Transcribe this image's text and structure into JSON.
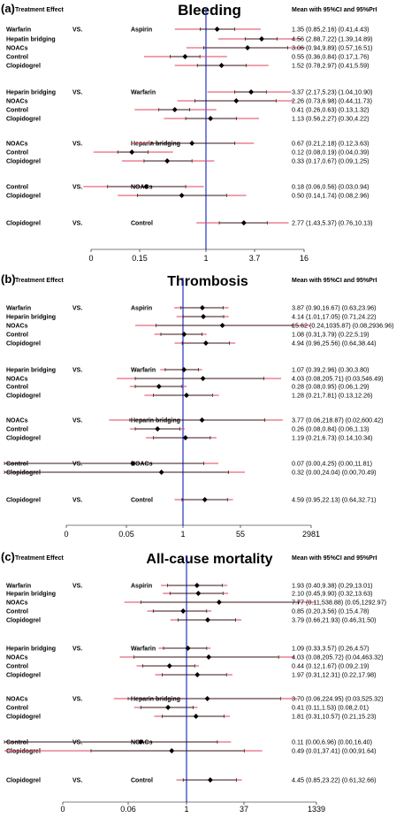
{
  "colors": {
    "ci": "#000000",
    "pri": "#e0405a",
    "ref": "#2233cc",
    "marker": "#000000"
  },
  "chart_data": [
    {
      "type": "forest",
      "panel_tag": "(a)",
      "title": "Bleeding",
      "left_header": "Treatment Effect",
      "right_header": "Mean with 95%CI and 95%PrI",
      "vs_label": "VS.",
      "x_scale": "log",
      "x_ticks": [
        "0",
        "0.15",
        "1",
        "3.7",
        "16"
      ],
      "reference": 1,
      "groups": [
        {
          "comparator": "Aspirin",
          "rows": [
            {
              "treatment": "Warfarin",
              "mean": 1.35,
              "ci": [
                0.85,
                2.16
              ],
              "pri": [
                0.41,
                4.43
              ],
              "text": "1.35 (0.85,2.16)  (0.41,4.43)"
            },
            {
              "treatment": "Hepatin bridging",
              "mean": 4.56,
              "ci": [
                2.88,
                7.22
              ],
              "pri": [
                1.39,
                14.89
              ],
              "text": "4.56 (2.88,7.22)  (1.39,14.89)"
            },
            {
              "treatment": "NOACs",
              "mean": 3.06,
              "ci": [
                0.94,
                9.89
              ],
              "pri": [
                0.57,
                16.51
              ],
              "text": "3.06 (0.94,9.89)  (0.57,16.51)"
            },
            {
              "treatment": "Control",
              "mean": 0.55,
              "ci": [
                0.36,
                0.84
              ],
              "pri": [
                0.17,
                1.76
              ],
              "text": "0.55 (0.36,0.84)  (0.17,1.76)"
            },
            {
              "treatment": "Clopidogrel",
              "mean": 1.52,
              "ci": [
                0.78,
                2.97
              ],
              "pri": [
                0.41,
                5.59
              ],
              "text": "1.52 (0.78,2.97)  (0.41,5.59)"
            }
          ]
        },
        {
          "comparator": "Warfarin",
          "rows": [
            {
              "treatment": "Heparin bridging",
              "mean": 3.37,
              "ci": [
                2.17,
                5.23
              ],
              "pri": [
                1.04,
                10.9
              ],
              "text": "3.37 (2.17,5.23)  (1.04,10.90)"
            },
            {
              "treatment": "NOACs",
              "mean": 2.26,
              "ci": [
                0.73,
                6.98
              ],
              "pri": [
                0.44,
                11.73
              ],
              "text": "2.26 (0.73,6.98)  (0.44,11.73)"
            },
            {
              "treatment": "Control",
              "mean": 0.41,
              "ci": [
                0.26,
                0.63
              ],
              "pri": [
                0.13,
                1.32
              ],
              "text": "0.41 (0.26,0.63)  (0.13,1.32)"
            },
            {
              "treatment": "Clopidogrel",
              "mean": 1.13,
              "ci": [
                0.56,
                2.27
              ],
              "pri": [
                0.3,
                4.22
              ],
              "text": "1.13 (0.56,2.27)  (0.30,4.22)"
            }
          ]
        },
        {
          "comparator": "Heparin bridging",
          "rows": [
            {
              "treatment": "NOACs",
              "mean": 0.67,
              "ci": [
                0.21,
                2.18
              ],
              "pri": [
                0.12,
                3.63
              ],
              "text": "0.67 (0.21,2.18)  (0.12,3.63)"
            },
            {
              "treatment": "Control",
              "mean": 0.12,
              "ci": [
                0.08,
                0.19
              ],
              "pri": [
                0.04,
                0.39
              ],
              "text": "0.12 (0.08,0.19)  (0.04,0.39)"
            },
            {
              "treatment": "Clopidogrel",
              "mean": 0.33,
              "ci": [
                0.17,
                0.67
              ],
              "pri": [
                0.09,
                1.25
              ],
              "text": "0.33 (0.17,0.67)  (0.09,1.25)"
            }
          ]
        },
        {
          "comparator": "NOACs",
          "rows": [
            {
              "treatment": "Control",
              "mean": 0.18,
              "ci": [
                0.06,
                0.56
              ],
              "pri": [
                0.03,
                0.94
              ],
              "text": "0.18 (0.06,0.56)  (0.03,0.94)"
            },
            {
              "treatment": "Clopidogrel",
              "mean": 0.5,
              "ci": [
                0.14,
                1.74
              ],
              "pri": [
                0.08,
                2.96
              ],
              "text": "0.50 (0.14,1.74)  (0.08,2.96)"
            }
          ]
        },
        {
          "comparator": "Control",
          "rows": [
            {
              "treatment": "Clopidogrel",
              "mean": 2.77,
              "ci": [
                1.43,
                5.37
              ],
              "pri": [
                0.76,
                10.13
              ],
              "text": "2.77 (1.43,5.37)  (0.76,10.13)"
            }
          ]
        }
      ]
    },
    {
      "type": "forest",
      "panel_tag": "(b)",
      "title": "Thrombosis",
      "left_header": "Treatment Effect",
      "right_header": "Mean with 95%CI and 95%PrI",
      "vs_label": "VS.",
      "x_scale": "log",
      "x_ticks": [
        "0",
        "0.05",
        "1",
        "55",
        "2981"
      ],
      "reference": 1,
      "groups": [
        {
          "comparator": "Aspirin",
          "rows": [
            {
              "treatment": "Warfarin",
              "mean": 3.87,
              "ci": [
                0.9,
                16.67
              ],
              "pri": [
                0.63,
                23.96
              ],
              "text": "3.87 (0.90,16.67)  (0.63,23.96)"
            },
            {
              "treatment": "Heparin bridging",
              "mean": 4.14,
              "ci": [
                1.01,
                17.05
              ],
              "pri": [
                0.71,
                24.22
              ],
              "text": "4.14 (1.01,17.05)  (0.71,24.22)"
            },
            {
              "treatment": "NOACs",
              "mean": 15.62,
              "ci": [
                0.24,
                1035.87
              ],
              "pri": [
                0.08,
                2936.96
              ],
              "text": "15.62 (0.24,1035.87)  (0.08,2936.96)"
            },
            {
              "treatment": "Control",
              "mean": 1.08,
              "ci": [
                0.31,
                3.79
              ],
              "pri": [
                0.22,
                5.19
              ],
              "text": "1.08 (0.31,3.79)  (0.22,5.19)"
            },
            {
              "treatment": "Clopidogrel",
              "mean": 4.94,
              "ci": [
                0.96,
                25.56
              ],
              "pri": [
                0.64,
                38.44
              ],
              "text": "4.94 (0.96,25.56)  (0.64,38.44)"
            }
          ]
        },
        {
          "comparator": "Warfarin",
          "rows": [
            {
              "treatment": "Heparin bridging",
              "mean": 1.07,
              "ci": [
                0.39,
                2.96
              ],
              "pri": [
                0.3,
                3.8
              ],
              "text": "1.07 (0.39,2.96)  (0.30,3.80)"
            },
            {
              "treatment": "NOACs",
              "mean": 4.03,
              "ci": [
                0.08,
                205.71
              ],
              "pri": [
                0.03,
                546.49
              ],
              "text": "4.03 (0.08,205.71)  (0.03,546.49)"
            },
            {
              "treatment": "Control",
              "mean": 0.28,
              "ci": [
                0.08,
                0.95
              ],
              "pri": [
                0.06,
                1.29
              ],
              "text": "0.28 (0.08,0.95)  (0.06,1.29)"
            },
            {
              "treatment": "Clopidogrel",
              "mean": 1.28,
              "ci": [
                0.21,
                7.81
              ],
              "pri": [
                0.13,
                12.26
              ],
              "text": "1.28 (0.21,7.81)  (0.13,12.26)"
            }
          ]
        },
        {
          "comparator": "Heparin bridging",
          "rows": [
            {
              "treatment": "NOACs",
              "mean": 3.77,
              "ci": [
                0.06,
                218.87
              ],
              "pri": [
                0.02,
                600.42
              ],
              "text": "3.77 (0.06,218.87)  (0.02,600.42)"
            },
            {
              "treatment": "Control",
              "mean": 0.26,
              "ci": [
                0.08,
                0.84
              ],
              "pri": [
                0.06,
                1.13
              ],
              "text": "0.26 (0.08,0.84)  (0.06,1.13)"
            },
            {
              "treatment": "Clopidogrel",
              "mean": 1.19,
              "ci": [
                0.21,
                6.73
              ],
              "pri": [
                0.14,
                10.34
              ],
              "text": "1.19 (0.21,6.73)  (0.14,10.34)"
            }
          ]
        },
        {
          "comparator": "NOACs",
          "rows": [
            {
              "treatment": "Control",
              "mean": 0.07,
              "ci": [
                0.0,
                4.25
              ],
              "pri": [
                0.0,
                11.81
              ],
              "text": "0.07 (0.00,4.25)  (0.00,11.81)"
            },
            {
              "treatment": "Clopidogrel",
              "mean": 0.32,
              "ci": [
                0.0,
                24.04
              ],
              "pri": [
                0.0,
                70.49
              ],
              "text": "0.32 (0.00,24.04)  (0.00,70.49)"
            }
          ]
        },
        {
          "comparator": "Control",
          "rows": [
            {
              "treatment": "Clopidogrel",
              "mean": 4.59,
              "ci": [
                0.95,
                22.13
              ],
              "pri": [
                0.64,
                32.71
              ],
              "text": "4.59 (0.95,22.13)  (0.64,32.71)"
            }
          ]
        }
      ]
    },
    {
      "type": "forest",
      "panel_tag": "(c)",
      "title": "All-cause mortality",
      "left_header": "Treatment Effect",
      "right_header": "Mean with 95%CI and 95%PrI",
      "vs_label": "VS.",
      "x_scale": "log",
      "x_ticks": [
        "0",
        "0.06",
        "1",
        "37",
        "1339"
      ],
      "reference": 1,
      "groups": [
        {
          "comparator": "Aspirin",
          "rows": [
            {
              "treatment": "Warfarin",
              "mean": 1.93,
              "ci": [
                0.4,
                9.38
              ],
              "pri": [
                0.29,
                13.01
              ],
              "text": "1.93 (0.40,9.38)  (0.29,13.01)"
            },
            {
              "treatment": "Heparin bridging",
              "mean": 2.1,
              "ci": [
                0.45,
                9.9
              ],
              "pri": [
                0.32,
                13.63
              ],
              "text": "2.10 (0.45,9.90)  (0.32,13.63)"
            },
            {
              "treatment": "NOACs",
              "mean": 7.77,
              "ci": [
                0.11,
                538.88
              ],
              "pri": [
                0.05,
                1292.97
              ],
              "text": "7.77 (0.11,538.88)  (0.05,1292.97)"
            },
            {
              "treatment": "Control",
              "mean": 0.85,
              "ci": [
                0.2,
                3.56
              ],
              "pri": [
                0.15,
                4.78
              ],
              "text": "0.85 (0.20,3.56)  (0.15,4.78)"
            },
            {
              "treatment": "Clopidogrel",
              "mean": 3.79,
              "ci": [
                0.66,
                21.93
              ],
              "pri": [
                0.46,
                31.5
              ],
              "text": "3.79 (0.66,21.93)  (0.46,31.50)"
            }
          ]
        },
        {
          "comparator": "Warfarin",
          "rows": [
            {
              "treatment": "Heparin bridging",
              "mean": 1.09,
              "ci": [
                0.33,
                3.57
              ],
              "pri": [
                0.26,
                4.57
              ],
              "text": "1.09 (0.33,3.57)  (0.26,4.57)"
            },
            {
              "treatment": "NOACs",
              "mean": 4.03,
              "ci": [
                0.08,
                205.72
              ],
              "pri": [
                0.04,
                463.32
              ],
              "text": "4.03 (0.08,205.72)  (0.04,463.32)"
            },
            {
              "treatment": "Control",
              "mean": 0.44,
              "ci": [
                0.12,
                1.67
              ],
              "pri": [
                0.09,
                2.19
              ],
              "text": "0.44 (0.12,1.67)  (0.09,2.19)"
            },
            {
              "treatment": "Clopidogrel",
              "mean": 1.97,
              "ci": [
                0.31,
                12.31
              ],
              "pri": [
                0.22,
                17.98
              ],
              "text": "1.97 (0.31,12.31)  (0.22,17.98)"
            }
          ]
        },
        {
          "comparator": "Heparin bridging",
          "rows": [
            {
              "treatment": "NOACs",
              "mean": 3.7,
              "ci": [
                0.06,
                224.95
              ],
              "pri": [
                0.03,
                525.32
              ],
              "text": "3.70 (0.06,224.95)  (0.03,525.32)"
            },
            {
              "treatment": "Control",
              "mean": 0.41,
              "ci": [
                0.11,
                1.53
              ],
              "pri": [
                0.08,
                2.01
              ],
              "text": "0.41 (0.11,1.53)  (0.08,2.01)"
            },
            {
              "treatment": "Clopidogrel",
              "mean": 1.81,
              "ci": [
                0.31,
                10.57
              ],
              "pri": [
                0.21,
                15.23
              ],
              "text": "1.81 (0.31,10.57)  (0.21,15.23)"
            }
          ]
        },
        {
          "comparator": "NOACs",
          "rows": [
            {
              "treatment": "Control",
              "mean": 0.11,
              "ci": [
                0.0,
                6.96
              ],
              "pri": [
                0.0,
                16.4
              ],
              "text": "0.11 (0.00,6.96)  (0.00,16.40)"
            },
            {
              "treatment": "Clopidogrel",
              "mean": 0.49,
              "ci": [
                0.01,
                37.41
              ],
              "pri": [
                0.0,
                91.64
              ],
              "text": "0.49 (0.01,37.41)  (0.00,91.64)"
            }
          ]
        },
        {
          "comparator": "Control",
          "rows": [
            {
              "treatment": "Clopidogrel",
              "mean": 4.45,
              "ci": [
                0.85,
                23.22
              ],
              "pri": [
                0.61,
                32.66
              ],
              "text": "4.45 (0.85,23.22)  (0.61,32.66)"
            }
          ]
        }
      ]
    }
  ]
}
